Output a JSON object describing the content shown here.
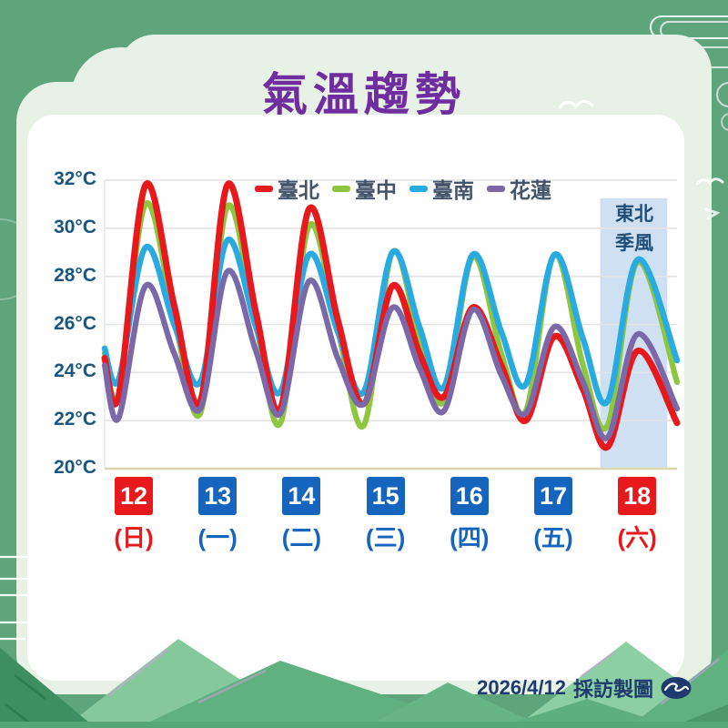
{
  "title": "氣溫趨勢",
  "legend": [
    {
      "label": "臺北",
      "color": "#e8191c"
    },
    {
      "label": "臺中",
      "color": "#8dc63f"
    },
    {
      "label": "臺南",
      "color": "#29abe2"
    },
    {
      "label": "花蓮",
      "color": "#7a68a8"
    }
  ],
  "annotation": {
    "line1": "東北",
    "line2": "季風"
  },
  "days": [
    {
      "num": "12",
      "weekday": "(日)",
      "highlight": true
    },
    {
      "num": "13",
      "weekday": "(一)",
      "highlight": false
    },
    {
      "num": "14",
      "weekday": "(二)",
      "highlight": false
    },
    {
      "num": "15",
      "weekday": "(三)",
      "highlight": false
    },
    {
      "num": "16",
      "weekday": "(四)",
      "highlight": false
    },
    {
      "num": "17",
      "weekday": "(五)",
      "highlight": false
    },
    {
      "num": "18",
      "weekday": "(六)",
      "highlight": true
    }
  ],
  "footer": {
    "date": "2026/4/12",
    "credit": "採訪製圖",
    "logo": "cwb-swallow-logo"
  },
  "colors": {
    "background": "#5fa57c",
    "card": "#e7f1e5",
    "panel": "#fdfefd",
    "title": "#6f2da0",
    "axis_text": "#1a567e",
    "badge_blue": "#1565bf",
    "badge_red": "#e8191c",
    "band_fill": "#cfe0f2",
    "band_text": "#1f4e79",
    "baseline": "#d9d5ae",
    "gridline": "#e4e4e4",
    "footer_text": "#1e3a6e"
  },
  "chart_data": {
    "type": "line",
    "title": "氣溫趨勢",
    "ylabel": "°C",
    "unit": "°C",
    "ylim": [
      20,
      32
    ],
    "y_ticks": [
      20,
      22,
      24,
      26,
      28,
      30,
      32
    ],
    "grid": true,
    "legend_position": "top",
    "x_days": [
      "12(日)",
      "13(一)",
      "14(二)",
      "15(三)",
      "16(四)",
      "17(五)",
      "18(六)"
    ],
    "x_range_days": [
      0,
      7
    ],
    "t_grid": [
      0,
      0.17,
      0.5,
      0.85,
      1.17,
      1.5,
      1.85,
      2.15,
      2.5,
      2.85,
      3.17,
      3.52,
      3.85,
      4.15,
      4.5,
      4.85,
      5.15,
      5.5,
      5.85,
      6.15,
      6.52,
      7
    ],
    "highlight_band": {
      "label": "東北季風",
      "t_start": 6.06,
      "t_end": 6.88,
      "top_c": 31.25,
      "bottom_c": 20.05,
      "fill": "#cfe0f2"
    },
    "series": [
      {
        "name": "臺北",
        "key": "taipei",
        "color": "#e8191c",
        "stroke_width": 7,
        "zorder": 3,
        "values": [
          24.6,
          23.0,
          31.8,
          26.8,
          22.8,
          31.8,
          26.5,
          22.5,
          30.8,
          26.2,
          22.7,
          27.6,
          24.8,
          23.0,
          26.7,
          24.3,
          22.0,
          25.5,
          23.3,
          20.9,
          24.9,
          21.9
        ]
      },
      {
        "name": "臺中",
        "key": "taichung",
        "color": "#8dc63f",
        "stroke_width": 6.2,
        "zorder": 1,
        "values": [
          24.8,
          23.1,
          31.0,
          26.3,
          22.3,
          30.9,
          26.0,
          21.9,
          30.1,
          25.8,
          21.8,
          29.0,
          25.3,
          22.8,
          28.8,
          24.8,
          22.4,
          28.9,
          24.3,
          21.8,
          28.6,
          23.6
        ]
      },
      {
        "name": "臺南",
        "key": "tainan",
        "color": "#29abe2",
        "stroke_width": 6.5,
        "zorder": 2,
        "values": [
          25.0,
          23.7,
          29.2,
          26.0,
          23.6,
          29.5,
          25.9,
          23.2,
          28.9,
          25.7,
          23.2,
          29.0,
          25.9,
          23.4,
          28.9,
          25.7,
          23.5,
          28.9,
          25.4,
          22.8,
          28.7,
          24.5
        ]
      },
      {
        "name": "花蓮",
        "key": "hualien",
        "color": "#7a68a8",
        "stroke_width": 6.2,
        "zorder": 4,
        "values": [
          24.3,
          22.1,
          27.6,
          24.8,
          22.5,
          28.2,
          24.9,
          22.3,
          27.8,
          24.6,
          22.7,
          26.7,
          24.2,
          22.4,
          26.6,
          23.9,
          22.3,
          25.9,
          23.6,
          21.3,
          25.6,
          22.5
        ]
      }
    ]
  }
}
